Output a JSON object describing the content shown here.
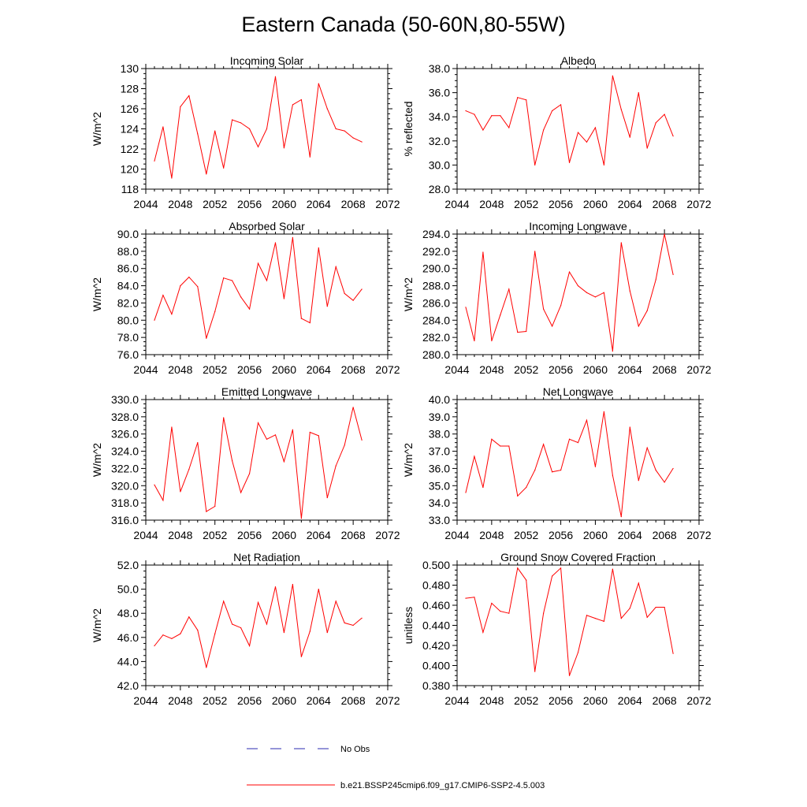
{
  "title": "Eastern Canada (50-60N,80-55W)",
  "colors": {
    "model": "#ff0000",
    "obs": "#2b2bb0"
  },
  "chart_data": [
    {
      "type": "line",
      "title": "Incoming Solar",
      "ylabel": "W/m^2",
      "xlim": [
        2044,
        2072
      ],
      "xticks": [
        2044,
        2048,
        2052,
        2056,
        2060,
        2064,
        2068,
        2072
      ],
      "ylim": [
        118,
        130
      ],
      "yticks": [
        118,
        120,
        122,
        124,
        126,
        128,
        130
      ],
      "ydecimals": 0,
      "x": [
        2045,
        2046,
        2047,
        2048,
        2049,
        2050,
        2051,
        2052,
        2053,
        2054,
        2055,
        2056,
        2057,
        2058,
        2059,
        2060,
        2061,
        2062,
        2063,
        2064,
        2065,
        2066,
        2067,
        2068,
        2069
      ],
      "series": [
        {
          "name": "b.e21.BSSP245cmip6.f09_g17.CMIP6-SSP2-4.5.003",
          "values": [
            120.8,
            124.2,
            119.1,
            126.2,
            127.3,
            123.5,
            119.5,
            123.8,
            120.1,
            124.9,
            124.6,
            124.0,
            122.2,
            124.0,
            129.2,
            122.1,
            126.4,
            126.9,
            121.2,
            128.5,
            126.0,
            124.0,
            123.8,
            123.1,
            122.7
          ]
        }
      ]
    },
    {
      "type": "line",
      "title": "Albedo",
      "ylabel": "% reflected",
      "xlim": [
        2044,
        2072
      ],
      "xticks": [
        2044,
        2048,
        2052,
        2056,
        2060,
        2064,
        2068,
        2072
      ],
      "ylim": [
        28,
        38
      ],
      "yticks": [
        28,
        30,
        32,
        34,
        36,
        38
      ],
      "ydecimals": 1,
      "x": [
        2045,
        2046,
        2047,
        2048,
        2049,
        2050,
        2051,
        2052,
        2053,
        2054,
        2055,
        2056,
        2057,
        2058,
        2059,
        2060,
        2061,
        2062,
        2063,
        2064,
        2065,
        2066,
        2067,
        2068,
        2069
      ],
      "series": [
        {
          "name": "b.e21.BSSP245cmip6.f09_g17.CMIP6-SSP2-4.5.003",
          "values": [
            34.5,
            34.2,
            32.9,
            34.1,
            34.1,
            33.1,
            35.6,
            35.4,
            30.0,
            32.9,
            34.5,
            35.0,
            30.2,
            32.7,
            31.9,
            33.1,
            30.0,
            37.4,
            34.6,
            32.3,
            36.0,
            31.4,
            33.5,
            34.2,
            32.4
          ]
        }
      ]
    },
    {
      "type": "line",
      "title": "Absorbed Solar",
      "ylabel": "W/m^2",
      "xlim": [
        2044,
        2072
      ],
      "xticks": [
        2044,
        2048,
        2052,
        2056,
        2060,
        2064,
        2068,
        2072
      ],
      "ylim": [
        76,
        90
      ],
      "yticks": [
        76,
        78,
        80,
        82,
        84,
        86,
        88,
        90
      ],
      "ydecimals": 1,
      "x": [
        2045,
        2046,
        2047,
        2048,
        2049,
        2050,
        2051,
        2052,
        2053,
        2054,
        2055,
        2056,
        2057,
        2058,
        2059,
        2060,
        2061,
        2062,
        2063,
        2064,
        2065,
        2066,
        2067,
        2068,
        2069
      ],
      "series": [
        {
          "name": "b.e21.BSSP245cmip6.f09_g17.CMIP6-SSP2-4.5.003",
          "values": [
            80.0,
            82.9,
            80.7,
            84.0,
            85.0,
            83.9,
            77.9,
            81.0,
            84.9,
            84.6,
            82.7,
            81.3,
            86.6,
            84.6,
            89.0,
            82.5,
            89.6,
            80.2,
            79.7,
            88.4,
            81.6,
            86.2,
            83.1,
            82.3,
            83.6
          ]
        }
      ]
    },
    {
      "type": "line",
      "title": "Incoming Longwave",
      "ylabel": "W/m^2",
      "xlim": [
        2044,
        2072
      ],
      "xticks": [
        2044,
        2048,
        2052,
        2056,
        2060,
        2064,
        2068,
        2072
      ],
      "ylim": [
        280,
        294
      ],
      "yticks": [
        280,
        282,
        284,
        286,
        288,
        290,
        292,
        294
      ],
      "ydecimals": 1,
      "x": [
        2045,
        2046,
        2047,
        2048,
        2049,
        2050,
        2051,
        2052,
        2053,
        2054,
        2055,
        2056,
        2057,
        2058,
        2059,
        2060,
        2061,
        2062,
        2063,
        2064,
        2065,
        2066,
        2067,
        2068,
        2069
      ],
      "series": [
        {
          "name": "b.e21.BSSP245cmip6.f09_g17.CMIP6-SSP2-4.5.003",
          "values": [
            285.5,
            281.6,
            291.9,
            281.6,
            284.6,
            287.6,
            282.6,
            282.7,
            292.0,
            285.3,
            283.3,
            285.7,
            289.6,
            288.0,
            287.2,
            286.7,
            287.2,
            280.4,
            293.0,
            287.4,
            283.3,
            285.1,
            288.7,
            294.0,
            289.3
          ]
        }
      ]
    },
    {
      "type": "line",
      "title": "Emitted Longwave",
      "ylabel": "W/m^2",
      "xlim": [
        2044,
        2072
      ],
      "xticks": [
        2044,
        2048,
        2052,
        2056,
        2060,
        2064,
        2068,
        2072
      ],
      "ylim": [
        316,
        330
      ],
      "yticks": [
        316,
        318,
        320,
        322,
        324,
        326,
        328,
        330
      ],
      "ydecimals": 1,
      "x": [
        2045,
        2046,
        2047,
        2048,
        2049,
        2050,
        2051,
        2052,
        2053,
        2054,
        2055,
        2056,
        2057,
        2058,
        2059,
        2060,
        2061,
        2062,
        2063,
        2064,
        2065,
        2066,
        2067,
        2068,
        2069
      ],
      "series": [
        {
          "name": "b.e21.BSSP245cmip6.f09_g17.CMIP6-SSP2-4.5.003",
          "values": [
            320.1,
            318.3,
            326.8,
            319.3,
            321.9,
            325.0,
            317.0,
            317.6,
            327.9,
            322.9,
            319.2,
            321.4,
            327.3,
            325.4,
            325.9,
            322.8,
            326.5,
            316.2,
            326.2,
            325.8,
            318.6,
            322.3,
            324.7,
            329.1,
            325.3
          ]
        }
      ]
    },
    {
      "type": "line",
      "title": "Net Longwave",
      "ylabel": "W/m^2",
      "xlim": [
        2044,
        2072
      ],
      "xticks": [
        2044,
        2048,
        2052,
        2056,
        2060,
        2064,
        2068,
        2072
      ],
      "ylim": [
        33,
        40
      ],
      "yticks": [
        33,
        34,
        35,
        36,
        37,
        38,
        39,
        40
      ],
      "ydecimals": 1,
      "x": [
        2045,
        2046,
        2047,
        2048,
        2049,
        2050,
        2051,
        2052,
        2053,
        2054,
        2055,
        2056,
        2057,
        2058,
        2059,
        2060,
        2061,
        2062,
        2063,
        2064,
        2065,
        2066,
        2067,
        2068,
        2069
      ],
      "series": [
        {
          "name": "b.e21.BSSP245cmip6.f09_g17.CMIP6-SSP2-4.5.003",
          "values": [
            34.6,
            36.7,
            34.9,
            37.7,
            37.3,
            37.3,
            34.4,
            34.9,
            35.9,
            37.4,
            35.8,
            35.9,
            37.7,
            37.5,
            38.8,
            36.1,
            39.3,
            35.6,
            33.2,
            38.4,
            35.3,
            37.2,
            35.9,
            35.2,
            36.0
          ]
        }
      ]
    },
    {
      "type": "line",
      "title": "Net Radiation",
      "ylabel": "W/m^2",
      "xlim": [
        2044,
        2072
      ],
      "xticks": [
        2044,
        2048,
        2052,
        2056,
        2060,
        2064,
        2068,
        2072
      ],
      "ylim": [
        42,
        52
      ],
      "yticks": [
        42,
        44,
        46,
        48,
        50,
        52
      ],
      "ydecimals": 1,
      "x": [
        2045,
        2046,
        2047,
        2048,
        2049,
        2050,
        2051,
        2052,
        2053,
        2054,
        2055,
        2056,
        2057,
        2058,
        2059,
        2060,
        2061,
        2062,
        2063,
        2064,
        2065,
        2066,
        2067,
        2068,
        2069
      ],
      "series": [
        {
          "name": "b.e21.BSSP245cmip6.f09_g17.CMIP6-SSP2-4.5.003",
          "values": [
            45.3,
            46.2,
            45.9,
            46.3,
            47.7,
            46.6,
            43.5,
            46.3,
            49.0,
            47.1,
            46.8,
            45.3,
            48.9,
            47.1,
            50.2,
            46.4,
            50.4,
            44.4,
            46.5,
            50.0,
            46.4,
            49.0,
            47.2,
            47.0,
            47.6
          ]
        }
      ]
    },
    {
      "type": "line",
      "title": "Ground Snow Covered Fraction",
      "ylabel": "unitless",
      "xlim": [
        2044,
        2072
      ],
      "xticks": [
        2044,
        2048,
        2052,
        2056,
        2060,
        2064,
        2068,
        2072
      ],
      "ylim": [
        0.38,
        0.5
      ],
      "yticks": [
        0.38,
        0.4,
        0.42,
        0.44,
        0.46,
        0.48,
        0.5
      ],
      "ydecimals": 3,
      "x": [
        2045,
        2046,
        2047,
        2048,
        2049,
        2050,
        2051,
        2052,
        2053,
        2054,
        2055,
        2056,
        2057,
        2058,
        2059,
        2060,
        2061,
        2062,
        2063,
        2064,
        2065,
        2066,
        2067,
        2068,
        2069
      ],
      "series": [
        {
          "name": "b.e21.BSSP245cmip6.f09_g17.CMIP6-SSP2-4.5.003",
          "values": [
            0.467,
            0.468,
            0.433,
            0.462,
            0.454,
            0.452,
            0.497,
            0.485,
            0.394,
            0.452,
            0.489,
            0.497,
            0.39,
            0.413,
            0.45,
            0.447,
            0.444,
            0.496,
            0.447,
            0.457,
            0.482,
            0.448,
            0.458,
            0.458,
            0.412
          ]
        }
      ]
    }
  ],
  "legend": [
    {
      "label": "No Obs",
      "style": "dashed",
      "color": "#2b2bb0"
    },
    {
      "label": "b.e21.BSSP245cmip6.f09_g17.CMIP6-SSP2-4.5.003",
      "style": "solid",
      "color": "#ff0000"
    }
  ]
}
